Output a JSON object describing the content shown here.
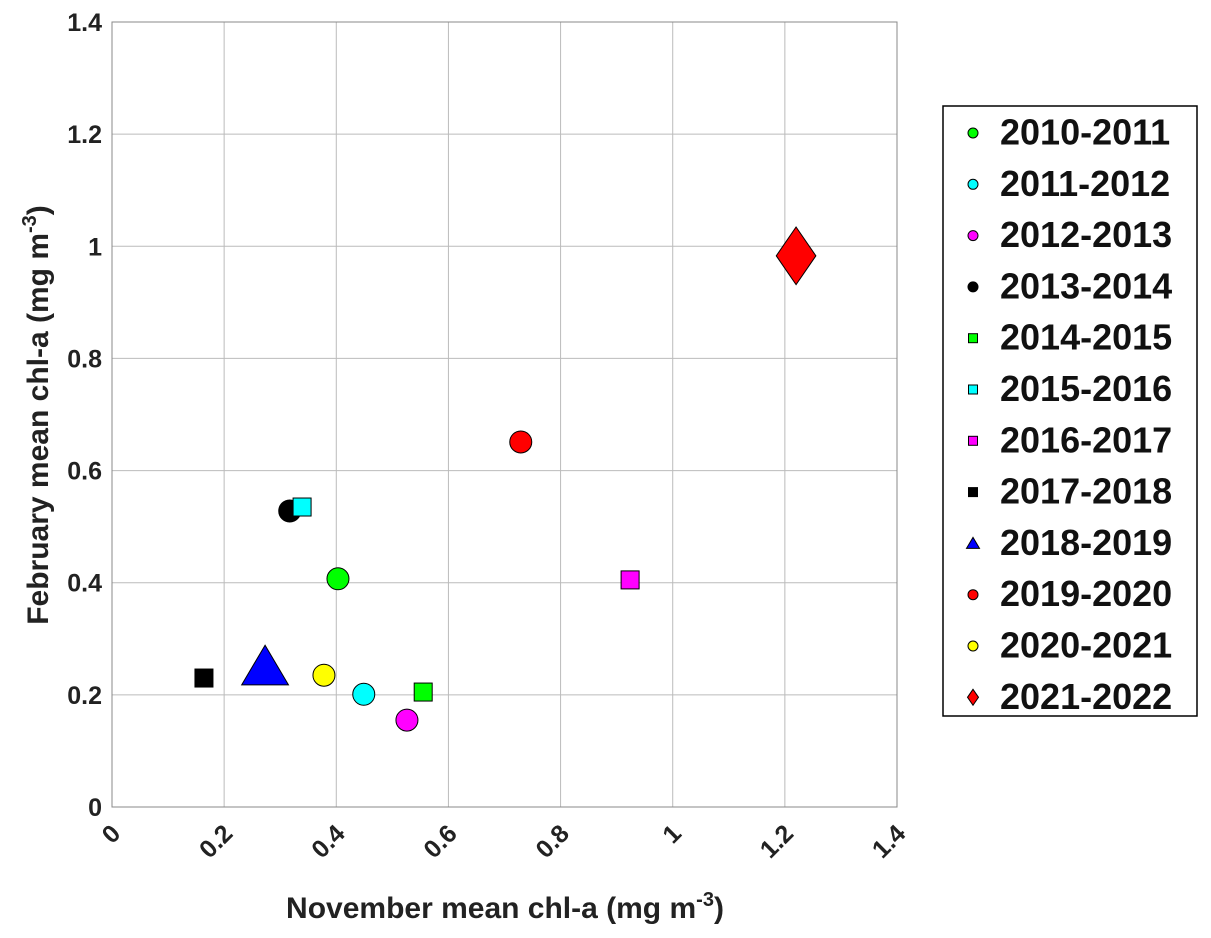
{
  "chart_data": {
    "type": "scatter",
    "x_label": {
      "text": "November mean chl-a (mg m",
      "superscript": "-3",
      "suffix": ")"
    },
    "y_label": {
      "text": "February mean chl-a (mg m",
      "superscript": "-3",
      "suffix": ")"
    },
    "xlim": [
      0,
      1.4
    ],
    "ylim": [
      0,
      1.4
    ],
    "xticks": [
      0,
      0.2,
      0.4,
      0.6,
      0.8,
      1,
      1.2,
      1.4
    ],
    "yticks": [
      0,
      0.2,
      0.4,
      0.6,
      0.8,
      1,
      1.2,
      1.4
    ],
    "grid": true,
    "legend": "right",
    "series": [
      {
        "name": "2010-2011",
        "color": "#00ff00",
        "marker": "circle",
        "x": [
          0.403
        ],
        "y": [
          0.407
        ]
      },
      {
        "name": "2011-2012",
        "color": "#00ffff",
        "marker": "circle",
        "x": [
          0.449
        ],
        "y": [
          0.201
        ]
      },
      {
        "name": "2012-2013",
        "color": "#ff00ff",
        "marker": "circle",
        "x": [
          0.526
        ],
        "y": [
          0.155
        ]
      },
      {
        "name": "2013-2014",
        "color": "#000000",
        "marker": "circle",
        "x": [
          0.317
        ],
        "y": [
          0.528
        ]
      },
      {
        "name": "2014-2015",
        "color": "#00ff00",
        "marker": "square",
        "x": [
          0.555
        ],
        "y": [
          0.205
        ]
      },
      {
        "name": "2015-2016",
        "color": "#00ffff",
        "marker": "square",
        "x": [
          0.339
        ],
        "y": [
          0.535
        ]
      },
      {
        "name": "2016-2017",
        "color": "#ff00ff",
        "marker": "square",
        "x": [
          0.924
        ],
        "y": [
          0.405
        ]
      },
      {
        "name": "2017-2018",
        "color": "#000000",
        "marker": "square",
        "x": [
          0.164
        ],
        "y": [
          0.23
        ]
      },
      {
        "name": "2018-2019",
        "color": "#0000ff",
        "marker": "triangle",
        "x": [
          0.273
        ],
        "y": [
          0.25
        ]
      },
      {
        "name": "2019-2020",
        "color": "#ff0000",
        "marker": "circle",
        "x": [
          0.729
        ],
        "y": [
          0.651
        ]
      },
      {
        "name": "2020-2021",
        "color": "#ffff00",
        "marker": "circle",
        "x": [
          0.378
        ],
        "y": [
          0.235
        ]
      },
      {
        "name": "2021-2022",
        "color": "#ff0000",
        "marker": "diamond",
        "x": [
          1.22
        ],
        "y": [
          0.983
        ]
      }
    ]
  }
}
